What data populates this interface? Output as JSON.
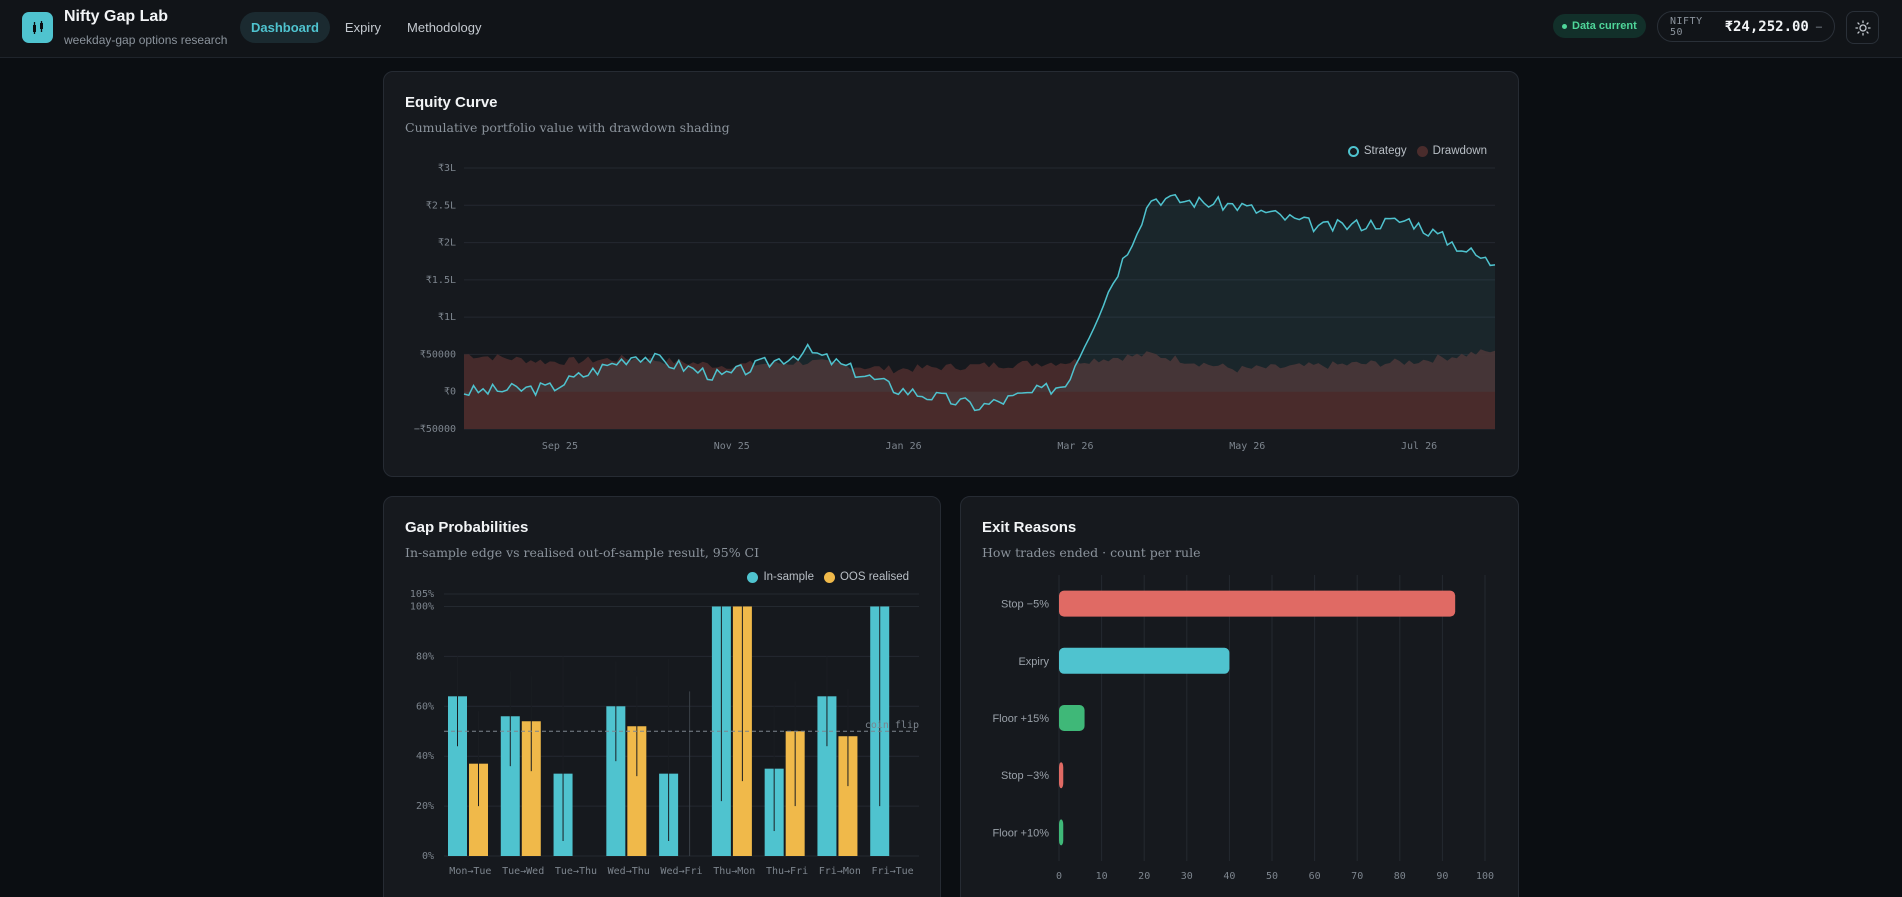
{
  "header": {
    "brand_title": "Nifty Gap Lab",
    "brand_subtitle": "weekday-gap options research",
    "nav": [
      {
        "label": "Dashboard",
        "active": true
      },
      {
        "label": "Expiry",
        "active": false
      },
      {
        "label": "Methodology",
        "active": false
      }
    ],
    "status": "Data current",
    "ticker_label": "NIFTY 50",
    "ticker_value": "₹24,252.00",
    "ticker_change": "–",
    "theme_icon": "sun-icon"
  },
  "colors": {
    "accent": "#4fc3cf",
    "oos": "#f0b94a",
    "drawdown": "#4a2c2c",
    "stop": "#e06a64",
    "floor": "#3fb878"
  },
  "equity": {
    "title": "Equity Curve",
    "subtitle": "Cumulative portfolio value with drawdown shading",
    "legend": [
      "Strategy",
      "Drawdown"
    ]
  },
  "gap": {
    "title": "Gap Probabilities",
    "subtitle": "In-sample edge vs realised out-of-sample result, 95% CI",
    "legend": [
      "In-sample",
      "OOS realised"
    ],
    "ref_label": "coin flip"
  },
  "exit": {
    "title": "Exit Reasons",
    "subtitle": "How trades ended · count per rule"
  },
  "chart_data": [
    {
      "type": "line",
      "title": "Equity Curve",
      "y_ticks": [
        "₹3L",
        "₹2.5L",
        "₹2L",
        "₹1.5L",
        "₹1L",
        "₹50000",
        "₹0",
        "−₹50000"
      ],
      "ylim": [
        -50000,
        300000
      ],
      "x_ticks": [
        "Sep 25",
        "Nov 25",
        "Jan 26",
        "Mar 26",
        "May 26",
        "Jul 26"
      ],
      "grid": true,
      "legend_placement": "top-right",
      "series": [
        {
          "name": "Strategy",
          "x": [
            "Aug 25",
            "Sep 25",
            "Oct 25",
            "Nov 25",
            "Dec 25",
            "Jan 26",
            "Feb 26",
            "Mar 26",
            "Apr 26",
            "May 26",
            "Jun 26",
            "Jul 26",
            "Aug 26"
          ],
          "values": [
            0,
            5000,
            50000,
            20000,
            55000,
            5000,
            -20000,
            10000,
            260000,
            250000,
            220000,
            230000,
            170000
          ]
        },
        {
          "name": "Drawdown",
          "x": [
            "Aug 25",
            "Sep 25",
            "Oct 25",
            "Nov 25",
            "Dec 25",
            "Jan 26",
            "Feb 26",
            "Mar 26",
            "Apr 26",
            "May 26",
            "Jun 26",
            "Jul 26",
            "Aug 26"
          ],
          "values": [
            -50000,
            -30000,
            -40000,
            -20000,
            -30000,
            -10000,
            20000,
            -30000,
            -50000,
            10000,
            20000,
            30000,
            60000
          ]
        }
      ]
    },
    {
      "type": "bar",
      "title": "Gap Probabilities",
      "categories": [
        "Mon→Tue",
        "Tue→Wed",
        "Tue→Thu",
        "Wed→Thu",
        "Wed→Fri",
        "Thu→Mon",
        "Thu→Fri",
        "Fri→Mon",
        "Fri→Tue"
      ],
      "y_ticks": [
        "105%",
        "100%",
        "80%",
        "60%",
        "40%",
        "20%",
        "0%"
      ],
      "ylim": [
        0,
        105
      ],
      "reference_line": 50,
      "legend_placement": "top-right",
      "series": [
        {
          "name": "In-sample",
          "values": [
            64,
            56,
            33,
            60,
            33,
            100,
            35,
            64,
            100
          ],
          "ci_low": [
            44,
            36,
            6,
            38,
            6,
            22,
            10,
            44,
            20
          ],
          "ci_high": [
            80,
            74,
            80,
            78,
            79,
            100,
            60,
            80,
            100
          ]
        },
        {
          "name": "OOS realised",
          "values": [
            37,
            54,
            0,
            52,
            0,
            100,
            50,
            48,
            0
          ],
          "ci_low": [
            20,
            34,
            0,
            32,
            0,
            30,
            20,
            28,
            0
          ],
          "ci_high": [
            58,
            72,
            0,
            72,
            66,
            100,
            70,
            67,
            0
          ]
        }
      ]
    },
    {
      "type": "bar",
      "orientation": "horizontal",
      "title": "Exit Reasons",
      "categories": [
        "Stop −5%",
        "Expiry",
        "Floor +15%",
        "Stop −3%",
        "Floor +10%"
      ],
      "values": [
        93,
        40,
        6,
        1,
        1
      ],
      "x_ticks": [
        "0",
        "10",
        "20",
        "30",
        "40",
        "50",
        "60",
        "70",
        "80",
        "90",
        "100"
      ],
      "xlim": [
        0,
        100
      ]
    }
  ]
}
